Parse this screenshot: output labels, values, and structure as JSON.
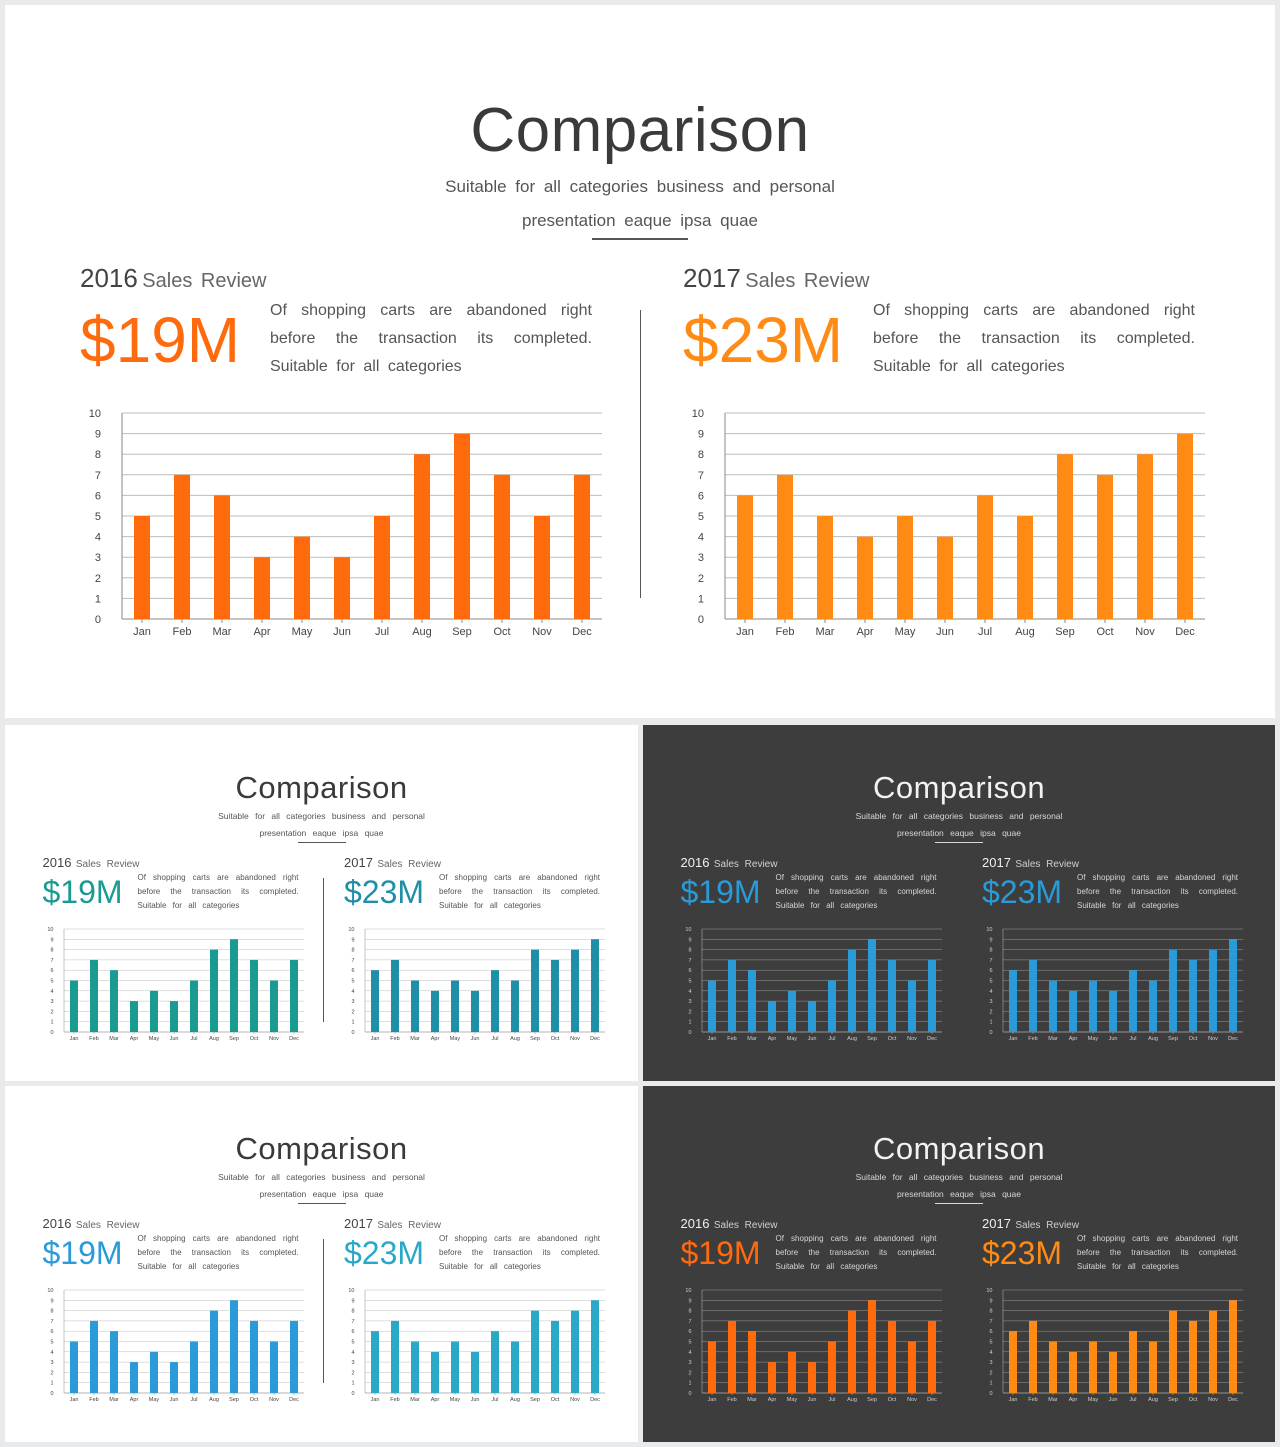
{
  "slides": [
    {
      "theme": "light",
      "title": "Comparison",
      "subtitle_lines": [
        "Suitable for all categories business and personal",
        "presentation eaque ipsa quae"
      ],
      "panels": [
        {
          "year": "2016",
          "label": "Sales Review",
          "amount": "$19M",
          "desc_lines": [
            "Of shopping carts are abandoned right",
            "before the transaction its completed.",
            "Suitable for all categories"
          ],
          "bar_color": "#ff6a0d",
          "amount_color": "#ff6a0d"
        },
        {
          "year": "2017",
          "label": "Sales Review",
          "amount": "$23M",
          "desc_lines": [
            "Of shopping carts are abandoned right",
            "before the transaction its completed.",
            "Suitable for all categories"
          ],
          "bar_color": "#ff8a14",
          "amount_color": "#ff8a14"
        }
      ]
    },
    {
      "theme": "light",
      "title": "Comparison",
      "subtitle_lines": [
        "Suitable for all categories business and personal",
        "presentation eaque ipsa quae"
      ],
      "panels": [
        {
          "year": "2016",
          "label": "Sales Review",
          "amount": "$19M",
          "desc_lines": [
            "Of shopping carts are abandoned right",
            "before the transaction its completed.",
            "Suitable for all categories"
          ],
          "bar_color": "#1a9b92",
          "amount_color": "#1a9b92"
        },
        {
          "year": "2017",
          "label": "Sales Review",
          "amount": "$23M",
          "desc_lines": [
            "Of shopping carts are abandoned right",
            "before the transaction its completed.",
            "Suitable for all categories"
          ],
          "bar_color": "#1f8fa8",
          "amount_color": "#1f8fa8"
        }
      ]
    },
    {
      "theme": "dark",
      "title": "Comparison",
      "subtitle_lines": [
        "Suitable for all categories business and personal",
        "presentation eaque ipsa quae"
      ],
      "panels": [
        {
          "year": "2016",
          "label": "Sales Review",
          "amount": "$19M",
          "desc_lines": [
            "Of shopping carts are abandoned right",
            "before the transaction its completed.",
            "Suitable for all categories"
          ],
          "bar_color": "#2a9ad8",
          "amount_color": "#2a9ad8"
        },
        {
          "year": "2017",
          "label": "Sales Review",
          "amount": "$23M",
          "desc_lines": [
            "Of shopping carts are abandoned right",
            "before the transaction its completed.",
            "Suitable for all categories"
          ],
          "bar_color": "#2a9ad8",
          "amount_color": "#2a9ad8"
        }
      ]
    },
    {
      "theme": "light",
      "title": "Comparison",
      "subtitle_lines": [
        "Suitable for all categories business and personal",
        "presentation eaque ipsa quae"
      ],
      "panels": [
        {
          "year": "2016",
          "label": "Sales Review",
          "amount": "$19M",
          "desc_lines": [
            "Of shopping carts are abandoned right",
            "before the transaction its completed.",
            "Suitable for all categories"
          ],
          "bar_color": "#2a9ad8",
          "amount_color": "#2a9ad8"
        },
        {
          "year": "2017",
          "label": "Sales Review",
          "amount": "$23M",
          "desc_lines": [
            "Of shopping carts are abandoned right",
            "before the transaction its completed.",
            "Suitable for all categories"
          ],
          "bar_color": "#2aa8c8",
          "amount_color": "#2aa8c8"
        }
      ]
    },
    {
      "theme": "dark",
      "title": "Comparison",
      "subtitle_lines": [
        "Suitable for all categories business and personal",
        "presentation eaque ipsa quae"
      ],
      "panels": [
        {
          "year": "2016",
          "label": "Sales Review",
          "amount": "$19M",
          "desc_lines": [
            "Of shopping carts are abandoned right",
            "before the transaction its completed.",
            "Suitable for all categories"
          ],
          "bar_color": "#ff6a0d",
          "amount_color": "#ff6a0d"
        },
        {
          "year": "2017",
          "label": "Sales Review",
          "amount": "$23M",
          "desc_lines": [
            "Of shopping carts are abandoned right",
            "before the transaction its completed.",
            "Suitable for all categories"
          ],
          "bar_color": "#ff8a14",
          "amount_color": "#ff8a14"
        }
      ]
    }
  ],
  "chart_data": [
    {
      "type": "bar",
      "title": "",
      "categories": [
        "Jan",
        "Feb",
        "Mar",
        "Apr",
        "May",
        "Jun",
        "Jul",
        "Aug",
        "Sep",
        "Oct",
        "Nov",
        "Dec"
      ],
      "values": [
        5,
        7,
        6,
        3,
        4,
        3,
        5,
        8,
        9,
        7,
        5,
        7
      ],
      "yticks": [
        "0",
        "1",
        "2",
        "3",
        "4",
        "5",
        "6",
        "7",
        "8",
        "9",
        "10"
      ],
      "ylim": [
        0,
        10
      ],
      "grid": true
    },
    {
      "type": "bar",
      "title": "",
      "categories": [
        "Jan",
        "Feb",
        "Mar",
        "Apr",
        "May",
        "Jun",
        "Jul",
        "Aug",
        "Sep",
        "Oct",
        "Nov",
        "Dec"
      ],
      "values": [
        6,
        7,
        5,
        4,
        5,
        4,
        6,
        5,
        8,
        7,
        8,
        9
      ],
      "yticks": [
        "0",
        "1",
        "2",
        "3",
        "4",
        "5",
        "6",
        "7",
        "8",
        "9",
        "10"
      ],
      "ylim": [
        0,
        10
      ],
      "grid": true
    }
  ]
}
